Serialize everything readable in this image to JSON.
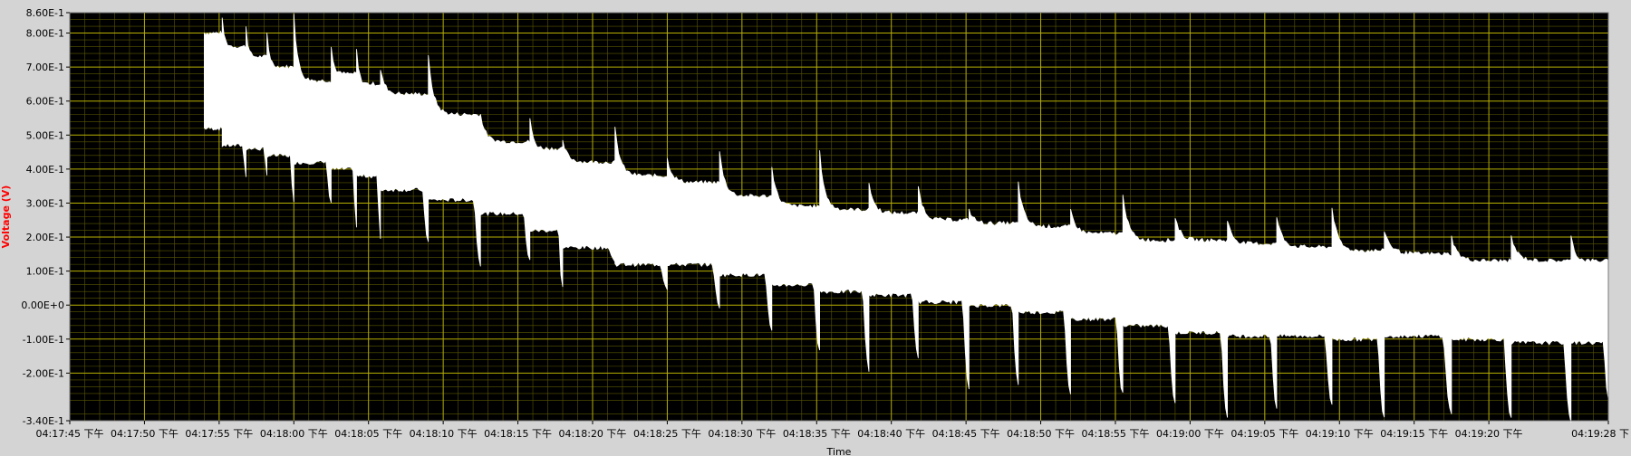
{
  "chart_data": {
    "type": "line",
    "xlabel": "Time",
    "ylabel": "Voltage (V)",
    "ylim": [
      -0.34,
      0.86
    ],
    "xlim_seconds_span": 103,
    "grid": true,
    "legend": "none",
    "colors": {
      "plot_bg": "#000000",
      "major_grid": "#b7b000",
      "minor_grid": "#5a5800",
      "trace": "#ffffff",
      "ylabel": "#ff0000",
      "panel": "#d4d4d4"
    },
    "y_ticks": [
      {
        "value": 0.86,
        "label": "8.60E-1"
      },
      {
        "value": 0.8,
        "label": "8.00E-1"
      },
      {
        "value": 0.7,
        "label": "7.00E-1"
      },
      {
        "value": 0.6,
        "label": "6.00E-1"
      },
      {
        "value": 0.5,
        "label": "5.00E-1"
      },
      {
        "value": 0.4,
        "label": "4.00E-1"
      },
      {
        "value": 0.3,
        "label": "3.00E-1"
      },
      {
        "value": 0.2,
        "label": "2.00E-1"
      },
      {
        "value": 0.1,
        "label": "1.00E-1"
      },
      {
        "value": 0.0,
        "label": "0.00E+0"
      },
      {
        "value": -0.1,
        "label": "-1.00E-1"
      },
      {
        "value": -0.2,
        "label": "-2.00E-1"
      },
      {
        "value": -0.34,
        "label": "-3.40E-1"
      }
    ],
    "x_ticks": [
      {
        "t": 0,
        "label": "04:17:45 下午"
      },
      {
        "t": 5,
        "label": "04:17:50 下午"
      },
      {
        "t": 10,
        "label": "04:17:55 下午"
      },
      {
        "t": 15,
        "label": "04:18:00 下午"
      },
      {
        "t": 20,
        "label": "04:18:05 下午"
      },
      {
        "t": 25,
        "label": "04:18:10 下午"
      },
      {
        "t": 30,
        "label": "04:18:15 下午"
      },
      {
        "t": 35,
        "label": "04:18:20 下午"
      },
      {
        "t": 40,
        "label": "04:18:25 下午"
      },
      {
        "t": 45,
        "label": "04:18:30 下午"
      },
      {
        "t": 50,
        "label": "04:18:35 下午"
      },
      {
        "t": 55,
        "label": "04:18:40 下午"
      },
      {
        "t": 60,
        "label": "04:18:45 下午"
      },
      {
        "t": 65,
        "label": "04:18:50 下午"
      },
      {
        "t": 70,
        "label": "04:18:55 下午"
      },
      {
        "t": 75,
        "label": "04:19:00 下午"
      },
      {
        "t": 80,
        "label": "04:19:05 下午"
      },
      {
        "t": 85,
        "label": "04:19:10 下午"
      },
      {
        "t": 90,
        "label": "04:19:15 下午"
      },
      {
        "t": 95,
        "label": "04:19:20 下午"
      },
      {
        "t": 103,
        "label": "04:19:28 下"
      }
    ],
    "series": [
      {
        "trace_start": 9.0,
        "trace_end": 103.0,
        "segments": [
          {
            "t0": 9.0,
            "t1": 10.2,
            "top": 0.8,
            "bottom": 0.52,
            "spike_max": 0.8,
            "spike_min": 0.52
          },
          {
            "t0": 10.2,
            "t1": 11.8,
            "top": 0.76,
            "bottom": 0.47,
            "spike_max": 0.84,
            "spike_min": 0.38
          },
          {
            "t0": 11.8,
            "t1": 13.2,
            "top": 0.73,
            "bottom": 0.46,
            "spike_max": 0.82,
            "spike_min": 0.38
          },
          {
            "t0": 13.2,
            "t1": 15.0,
            "top": 0.7,
            "bottom": 0.44,
            "spike_max": 0.8,
            "spike_min": 0.3
          },
          {
            "t0": 15.0,
            "t1": 17.5,
            "top": 0.66,
            "bottom": 0.42,
            "spike_max": 0.86,
            "spike_min": 0.3
          },
          {
            "t0": 17.5,
            "t1": 19.2,
            "top": 0.68,
            "bottom": 0.4,
            "spike_max": 0.76,
            "spike_min": 0.23
          },
          {
            "t0": 19.2,
            "t1": 20.8,
            "top": 0.65,
            "bottom": 0.38,
            "spike_max": 0.75,
            "spike_min": 0.19
          },
          {
            "t0": 20.8,
            "t1": 24.0,
            "top": 0.62,
            "bottom": 0.34,
            "spike_max": 0.69,
            "spike_min": 0.19
          },
          {
            "t0": 24.0,
            "t1": 27.5,
            "top": 0.56,
            "bottom": 0.31,
            "spike_max": 0.73,
            "spike_min": 0.12
          },
          {
            "t0": 27.5,
            "t1": 30.8,
            "top": 0.48,
            "bottom": 0.27,
            "spike_max": 0.56,
            "spike_min": 0.13
          },
          {
            "t0": 30.8,
            "t1": 33.0,
            "top": 0.46,
            "bottom": 0.22,
            "spike_max": 0.55,
            "spike_min": 0.05
          },
          {
            "t0": 33.0,
            "t1": 36.5,
            "top": 0.42,
            "bottom": 0.17,
            "spike_max": 0.48,
            "spike_min": 0.13
          },
          {
            "t0": 36.5,
            "t1": 40.0,
            "top": 0.38,
            "bottom": 0.12,
            "spike_max": 0.52,
            "spike_min": 0.05
          },
          {
            "t0": 40.0,
            "t1": 43.5,
            "top": 0.36,
            "bottom": 0.12,
            "spike_max": 0.43,
            "spike_min": -0.01
          },
          {
            "t0": 43.5,
            "t1": 47.0,
            "top": 0.32,
            "bottom": 0.09,
            "spike_max": 0.45,
            "spike_min": -0.08
          },
          {
            "t0": 47.0,
            "t1": 50.2,
            "top": 0.29,
            "bottom": 0.06,
            "spike_max": 0.41,
            "spike_min": -0.13
          },
          {
            "t0": 50.2,
            "t1": 53.5,
            "top": 0.28,
            "bottom": 0.04,
            "spike_max": 0.45,
            "spike_min": -0.19
          },
          {
            "t0": 53.5,
            "t1": 56.8,
            "top": 0.27,
            "bottom": 0.03,
            "spike_max": 0.36,
            "spike_min": -0.15
          },
          {
            "t0": 56.8,
            "t1": 60.2,
            "top": 0.25,
            "bottom": 0.01,
            "spike_max": 0.35,
            "spike_min": -0.25
          },
          {
            "t0": 60.2,
            "t1": 63.5,
            "top": 0.24,
            "bottom": 0.0,
            "spike_max": 0.28,
            "spike_min": -0.23
          },
          {
            "t0": 63.5,
            "t1": 67.0,
            "top": 0.23,
            "bottom": -0.02,
            "spike_max": 0.36,
            "spike_min": -0.26
          },
          {
            "t0": 67.0,
            "t1": 70.5,
            "top": 0.21,
            "bottom": -0.04,
            "spike_max": 0.28,
            "spike_min": -0.26
          },
          {
            "t0": 70.5,
            "t1": 74.0,
            "top": 0.19,
            "bottom": -0.06,
            "spike_max": 0.33,
            "spike_min": -0.29
          },
          {
            "t0": 74.0,
            "t1": 77.5,
            "top": 0.19,
            "bottom": -0.08,
            "spike_max": 0.26,
            "spike_min": -0.33
          },
          {
            "t0": 77.5,
            "t1": 80.8,
            "top": 0.18,
            "bottom": -0.09,
            "spike_max": 0.25,
            "spike_min": -0.3
          },
          {
            "t0": 80.8,
            "t1": 84.5,
            "top": 0.17,
            "bottom": -0.09,
            "spike_max": 0.26,
            "spike_min": -0.29
          },
          {
            "t0": 84.5,
            "t1": 88.0,
            "top": 0.16,
            "bottom": -0.1,
            "spike_max": 0.29,
            "spike_min": -0.33
          },
          {
            "t0": 88.0,
            "t1": 92.5,
            "top": 0.15,
            "bottom": -0.09,
            "spike_max": 0.22,
            "spike_min": -0.32
          },
          {
            "t0": 92.5,
            "t1": 96.5,
            "top": 0.13,
            "bottom": -0.1,
            "spike_max": 0.2,
            "spike_min": -0.33
          },
          {
            "t0": 96.5,
            "t1": 100.5,
            "top": 0.13,
            "bottom": -0.11,
            "spike_max": 0.2,
            "spike_min": -0.34
          },
          {
            "t0": 100.5,
            "t1": 103.0,
            "top": 0.13,
            "bottom": -0.11,
            "spike_max": 0.21,
            "spike_min": -0.28
          }
        ]
      }
    ]
  }
}
